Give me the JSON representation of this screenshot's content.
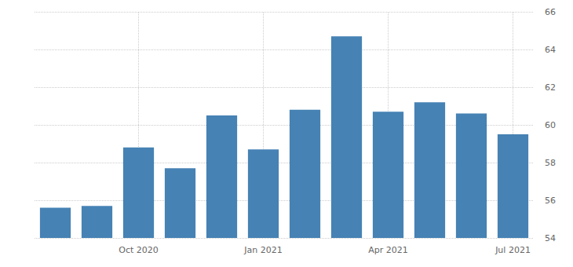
{
  "chart_data": {
    "type": "bar",
    "categories": [
      null,
      null,
      "Oct 2020",
      null,
      null,
      "Jan 2021",
      null,
      null,
      "Apr 2021",
      null,
      null,
      "Jul 2021"
    ],
    "values": [
      55.6,
      55.7,
      58.8,
      57.7,
      60.5,
      58.7,
      60.8,
      64.7,
      60.7,
      61.2,
      60.6,
      59.5
    ],
    "color": "#4682b4",
    "ylim": [
      54,
      66
    ],
    "yticks": [
      54,
      56,
      58,
      60,
      62,
      64,
      66
    ],
    "grid": true
  }
}
